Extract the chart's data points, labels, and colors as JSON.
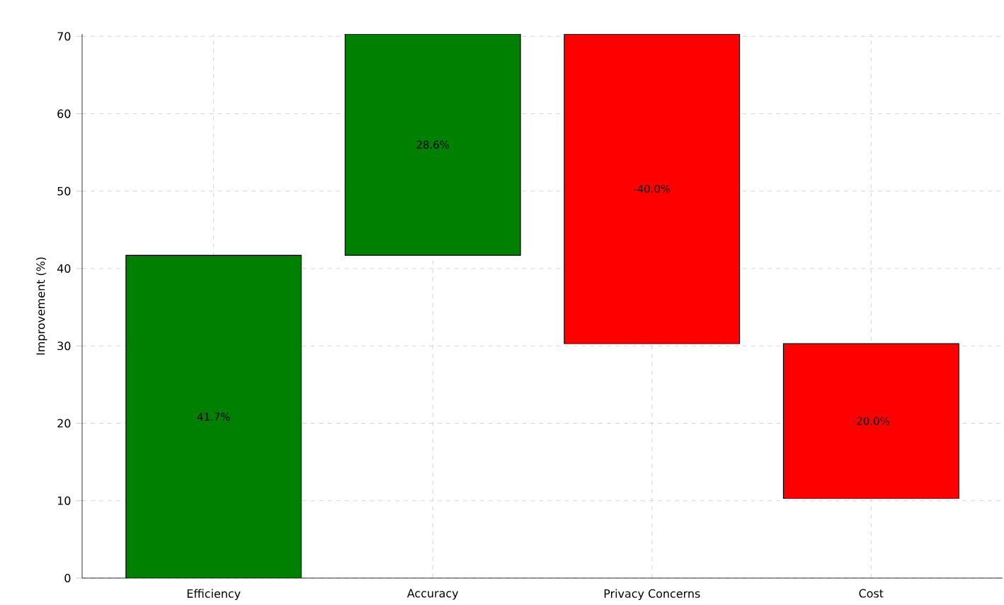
{
  "chart_data": {
    "type": "bar",
    "ylabel": "Improvement (%)",
    "categories": [
      "Efficiency",
      "Accuracy",
      "Privacy Concerns",
      "Cost"
    ],
    "values": [
      41.7,
      28.6,
      -40.0,
      -20.0
    ],
    "base": [
      0,
      41.7,
      70.3,
      30.3
    ],
    "colors": [
      "#008000",
      "#008000",
      "#ff0000",
      "#ff0000"
    ],
    "value_labels": [
      "41.7%",
      "28.6%",
      "-40.0%",
      "-20.0%"
    ],
    "ylim": [
      0,
      70.3
    ],
    "yticks": [
      0,
      10,
      20,
      30,
      40,
      50,
      60,
      70
    ],
    "grid": true
  }
}
